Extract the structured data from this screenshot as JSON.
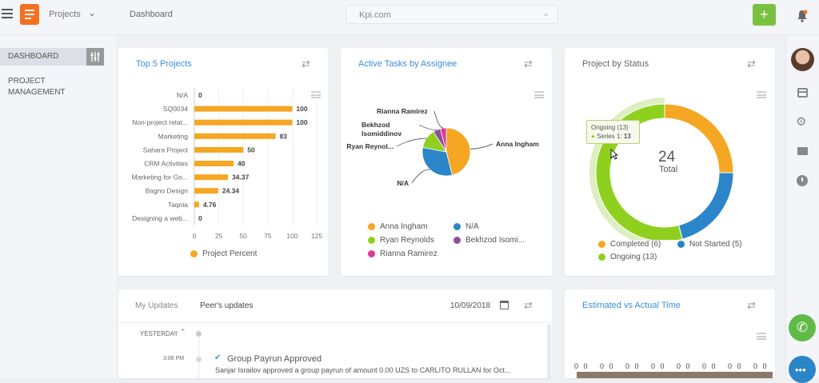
{
  "topbar": {
    "project_label": "Projects",
    "page_title": "Dashboard",
    "org_select": "Kpi.com",
    "add_label": "+"
  },
  "sidebar": {
    "items": [
      {
        "label": "DASHBOARD"
      },
      {
        "label": "PROJECT\nMANAGEMENT"
      }
    ]
  },
  "cards": {
    "top5": {
      "title": "Top 5 Projects",
      "legend": "Project Percent"
    },
    "tasks": {
      "title": "Active Tasks by Assignee"
    },
    "status": {
      "title": "Project by Status",
      "center_value": "24",
      "center_label": "Total",
      "tooltip_title": "Ongoing (13)",
      "tooltip_series": "Series 1:",
      "tooltip_value": "13"
    },
    "updates": {
      "tab_my": "My Updates",
      "tab_peer": "Peer's updates",
      "date": "10/09/2018",
      "section": "YESTERDAY",
      "time": "3:06 PM",
      "event_title": "Group Payrun Approved",
      "event_text": "Sanjar Israilov approved a group payrun of amount 0.00 UZS to CARLITO RULLAN for Oct..."
    },
    "estimated": {
      "title": "Estimated vs Actual Time",
      "zeros": [
        "0 0",
        "0 0",
        "0 0",
        "0 0",
        "0 0",
        "0 0",
        "0 0",
        "0 0"
      ]
    }
  },
  "chart_data": [
    {
      "type": "bar",
      "categories": [
        "N/A",
        "SQ0034",
        "Non-project relat...",
        "Marketing",
        "Sahara Project",
        "CRM Activities",
        "Marketing for Go...",
        "Bagno Design",
        "Taqnia",
        "Designing a web..."
      ],
      "series": [
        {
          "name": "Project Percent",
          "values": [
            0,
            100,
            100,
            83,
            50,
            40,
            34.37,
            24.34,
            4.76,
            0
          ]
        }
      ],
      "value_labels": [
        "0",
        "100",
        "100",
        "83",
        "50",
        "40",
        "34.37",
        "24.34",
        "4.76",
        "0"
      ],
      "xticks": [
        "0",
        "25",
        "50",
        "75",
        "100",
        "125"
      ],
      "xlim": [
        0,
        125
      ],
      "orientation": "horizontal",
      "color": "#f5a623"
    },
    {
      "type": "pie",
      "labels": [
        "Anna Ingham",
        "N/A",
        "Ryan Reynolds",
        "Bekhzod Isomiddinov",
        "Rianna Ramirez"
      ],
      "values": [
        46,
        32,
        13,
        5,
        4
      ],
      "callouts": [
        "Anna Ingham",
        "N/A",
        "Ryan Reynol...",
        "Bekhzod\nIsomiddinov",
        "Rianna Ramirez"
      ],
      "legend": [
        "Anna Ingham",
        "N/A",
        "Ryan Reynolds",
        "Bekhzod Isomi...",
        "Rianna Ramirez"
      ],
      "colors": [
        "#f5a623",
        "#2a86c9",
        "#8fd01e",
        "#8e4f9e",
        "#e0399a"
      ]
    },
    {
      "type": "pie",
      "variant": "donut",
      "labels": [
        "Completed",
        "Not Started",
        "Ongoing"
      ],
      "values": [
        6,
        5,
        13
      ],
      "legend": [
        "Completed (6)",
        "Not Started (5)",
        "Ongoing (13)"
      ],
      "colors": [
        "#f5a623",
        "#2a86c9",
        "#8fd01e"
      ]
    }
  ]
}
